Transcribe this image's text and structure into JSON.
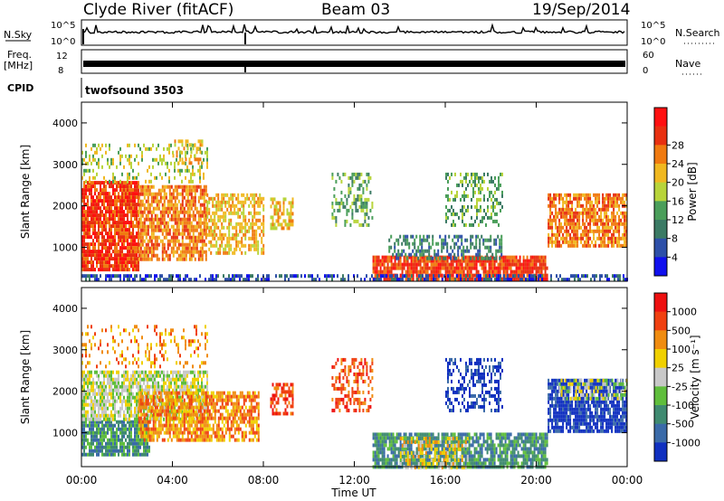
{
  "header": {
    "station": "Clyde River (fitACF)",
    "beam": "Beam 03",
    "date": "19/Sep/2014"
  },
  "strips": {
    "nsky": {
      "label": "N.Sky",
      "tick_top": "10^5",
      "tick_bottom": "10^0",
      "right_tick_top": "10^5",
      "right_tick_bottom": "10^0",
      "right_label": "N.Search"
    },
    "freq": {
      "label_1": "Freq.",
      "label_2": "[MHz]",
      "tick_top": "12",
      "tick_bottom": "8",
      "right_tick_top": "60",
      "right_tick_bottom": "0",
      "right_label": "Nave"
    },
    "cpid": {
      "label": "CPID",
      "value": "twofsound 3503"
    }
  },
  "chart_data": [
    {
      "type": "heatmap",
      "name": "power",
      "xlabel": "Time UT",
      "ylabel": "Slant Range [km]",
      "x_ticks": [
        "00:00",
        "04:00",
        "08:00",
        "12:00",
        "16:00",
        "20:00",
        "00:00"
      ],
      "y_ticks": [
        "1000",
        "2000",
        "3000",
        "4000"
      ],
      "xlim": [
        0,
        24
      ],
      "ylim": [
        180,
        4500
      ],
      "colorbar": {
        "label": "Power [dB]",
        "ticks": [
          "4",
          "8",
          "12",
          "16",
          "20",
          "24",
          "28"
        ],
        "colors": [
          "#1010ee",
          "#2d4fa8",
          "#3b7a64",
          "#4a9e5a",
          "#b8d43a",
          "#f0b820",
          "#f07a10",
          "#e83010",
          "#ff1010"
        ]
      },
      "regions": [
        {
          "t0": 0.0,
          "t1": 2.5,
          "r0": 500,
          "r1": 2600,
          "level": 7,
          "density": 0.85
        },
        {
          "t0": 2.5,
          "t1": 5.5,
          "r0": 700,
          "r1": 2500,
          "level": 6,
          "density": 0.75
        },
        {
          "t0": 5.5,
          "t1": 8.0,
          "r0": 900,
          "r1": 2300,
          "level": 5,
          "density": 0.6
        },
        {
          "t0": 0.0,
          "t1": 5.5,
          "r0": 2600,
          "r1": 3500,
          "level": 4,
          "density": 0.25
        },
        {
          "t0": 4.0,
          "t1": 5.3,
          "r0": 3000,
          "r1": 3600,
          "level": 5,
          "density": 0.35
        },
        {
          "t0": 8.3,
          "t1": 9.3,
          "r0": 1500,
          "r1": 2200,
          "level": 5,
          "density": 0.55
        },
        {
          "t0": 11.0,
          "t1": 12.8,
          "r0": 1500,
          "r1": 2800,
          "level": 3,
          "density": 0.35
        },
        {
          "t0": 12.8,
          "t1": 20.5,
          "r0": 200,
          "r1": 800,
          "level": 7,
          "density": 0.85
        },
        {
          "t0": 13.5,
          "t1": 18.5,
          "r0": 700,
          "r1": 1300,
          "level": 2,
          "density": 0.5
        },
        {
          "t0": 16.0,
          "t1": 18.5,
          "r0": 1500,
          "r1": 2800,
          "level": 3,
          "density": 0.35
        },
        {
          "t0": 20.5,
          "t1": 24.0,
          "r0": 1000,
          "r1": 2300,
          "level": 6,
          "density": 0.75
        },
        {
          "t0": 0.0,
          "t1": 24.0,
          "r0": 180,
          "r1": 350,
          "level": 1,
          "density": 0.5
        }
      ]
    },
    {
      "type": "heatmap",
      "name": "velocity",
      "xlabel": "Time UT",
      "ylabel": "Slant Range [km]",
      "x_ticks": [
        "00:00",
        "04:00",
        "08:00",
        "12:00",
        "16:00",
        "20:00",
        "00:00"
      ],
      "y_ticks": [
        "1000",
        "2000",
        "3000",
        "4000"
      ],
      "xlim": [
        0,
        24
      ],
      "ylim": [
        180,
        4500
      ],
      "colorbar": {
        "label": "Velocity [m s⁻¹]",
        "ticks": [
          "1000",
          "500",
          "100",
          "25",
          "-25",
          "-100",
          "-500",
          "-1000"
        ],
        "colors": [
          "#1030c0",
          "#3a6aa8",
          "#3f8a70",
          "#5fbe3c",
          "#c8c8c8",
          "#f0d000",
          "#f08c10",
          "#f04010",
          "#ee1010"
        ]
      },
      "regions": [
        {
          "t0": 0.0,
          "t1": 3.0,
          "r0": 500,
          "r1": 1300,
          "level": 2,
          "density": 0.85
        },
        {
          "t0": 0.0,
          "t1": 5.5,
          "r0": 1300,
          "r1": 2500,
          "level": 4,
          "density": 0.75
        },
        {
          "t0": 2.5,
          "t1": 7.8,
          "r0": 800,
          "r1": 2000,
          "level": 6,
          "density": 0.75
        },
        {
          "t0": 8.3,
          "t1": 9.3,
          "r0": 1500,
          "r1": 2200,
          "level": 7,
          "density": 0.55
        },
        {
          "t0": 11.0,
          "t1": 12.8,
          "r0": 1500,
          "r1": 2800,
          "level": 7,
          "density": 0.4
        },
        {
          "t0": 12.8,
          "t1": 20.5,
          "r0": 200,
          "r1": 1000,
          "level": 2,
          "density": 0.85
        },
        {
          "t0": 14.0,
          "t1": 17.0,
          "r0": 200,
          "r1": 900,
          "level": 5,
          "density": 0.4
        },
        {
          "t0": 16.0,
          "t1": 18.5,
          "r0": 1500,
          "r1": 2800,
          "level": 0,
          "density": 0.4
        },
        {
          "t0": 20.5,
          "t1": 24.0,
          "r0": 1000,
          "r1": 2300,
          "level": 0,
          "density": 0.8
        },
        {
          "t0": 21.0,
          "t1": 24.0,
          "r0": 1800,
          "r1": 2300,
          "level": 4,
          "density": 0.5
        },
        {
          "t0": 0.0,
          "t1": 5.5,
          "r0": 2600,
          "r1": 3600,
          "level": 6,
          "density": 0.2
        }
      ]
    }
  ]
}
